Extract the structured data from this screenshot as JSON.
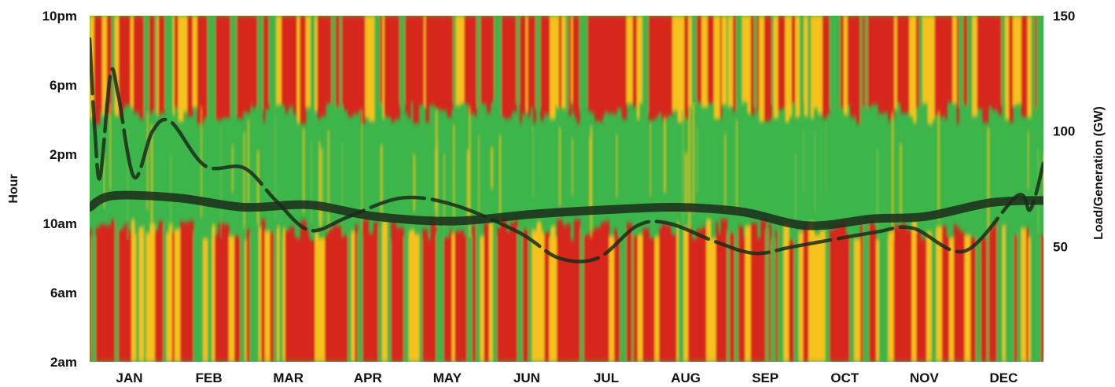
{
  "chart_data": {
    "type": "heatmap",
    "title": "",
    "ylabel_left": "Hour",
    "ylabel_right": "Load/Generation (GW)",
    "x_ticks": [
      "JAN",
      "FEB",
      "MAR",
      "APR",
      "MAY",
      "JUN",
      "JUL",
      "AUG",
      "SEP",
      "OCT",
      "NOV",
      "DEC"
    ],
    "y_left_ticks": [
      {
        "hour": 2,
        "label": "2am"
      },
      {
        "hour": 6,
        "label": "6am"
      },
      {
        "hour": 10,
        "label": "10am"
      },
      {
        "hour": 14,
        "label": "2pm"
      },
      {
        "hour": 18,
        "label": "6pm"
      },
      {
        "hour": 22,
        "label": "10pm"
      }
    ],
    "y_left_range": [
      2,
      22
    ],
    "y_right_ticks": [
      {
        "value": 50,
        "label": "50"
      },
      {
        "value": 100,
        "label": "100"
      },
      {
        "value": 150,
        "label": "150"
      }
    ],
    "y_right_range": [
      0,
      150
    ],
    "x_range_days": [
      1,
      365
    ],
    "heatmap_colors": {
      "low": "#3cb54a",
      "mid": "#f5c31e",
      "high": "#d7261e"
    },
    "heatmap_bands": [
      {
        "from_hour": 2,
        "to_hour": 9,
        "level": "high-variable"
      },
      {
        "from_hour": 9,
        "to_hour": 17,
        "level": "low"
      },
      {
        "from_hour": 17,
        "to_hour": 22,
        "level": "high-variable"
      }
    ],
    "line_color": "#1b2b1b",
    "series": [
      {
        "style": "thick-solid",
        "points": [
          [
            1,
            67
          ],
          [
            10,
            72
          ],
          [
            35,
            71
          ],
          [
            60,
            67
          ],
          [
            85,
            68
          ],
          [
            110,
            63
          ],
          [
            140,
            61
          ],
          [
            170,
            64
          ],
          [
            200,
            66
          ],
          [
            225,
            67
          ],
          [
            250,
            65
          ],
          [
            275,
            59
          ],
          [
            300,
            62
          ],
          [
            320,
            63
          ],
          [
            345,
            69
          ],
          [
            365,
            70
          ]
        ]
      },
      {
        "style": "dashed",
        "points": [
          [
            1,
            140
          ],
          [
            3,
            100
          ],
          [
            5,
            80
          ],
          [
            9,
            125
          ],
          [
            12,
            115
          ],
          [
            18,
            80
          ],
          [
            25,
            100
          ],
          [
            32,
            104
          ],
          [
            45,
            85
          ],
          [
            60,
            84
          ],
          [
            72,
            70
          ],
          [
            85,
            57
          ],
          [
            100,
            63
          ],
          [
            120,
            71
          ],
          [
            140,
            68
          ],
          [
            165,
            56
          ],
          [
            180,
            45
          ],
          [
            195,
            45
          ],
          [
            210,
            59
          ],
          [
            222,
            60
          ],
          [
            240,
            52
          ],
          [
            255,
            47
          ],
          [
            270,
            50
          ],
          [
            300,
            56
          ],
          [
            315,
            58
          ],
          [
            335,
            48
          ],
          [
            355,
            72
          ],
          [
            360,
            66
          ],
          [
            365,
            86
          ]
        ]
      }
    ]
  }
}
